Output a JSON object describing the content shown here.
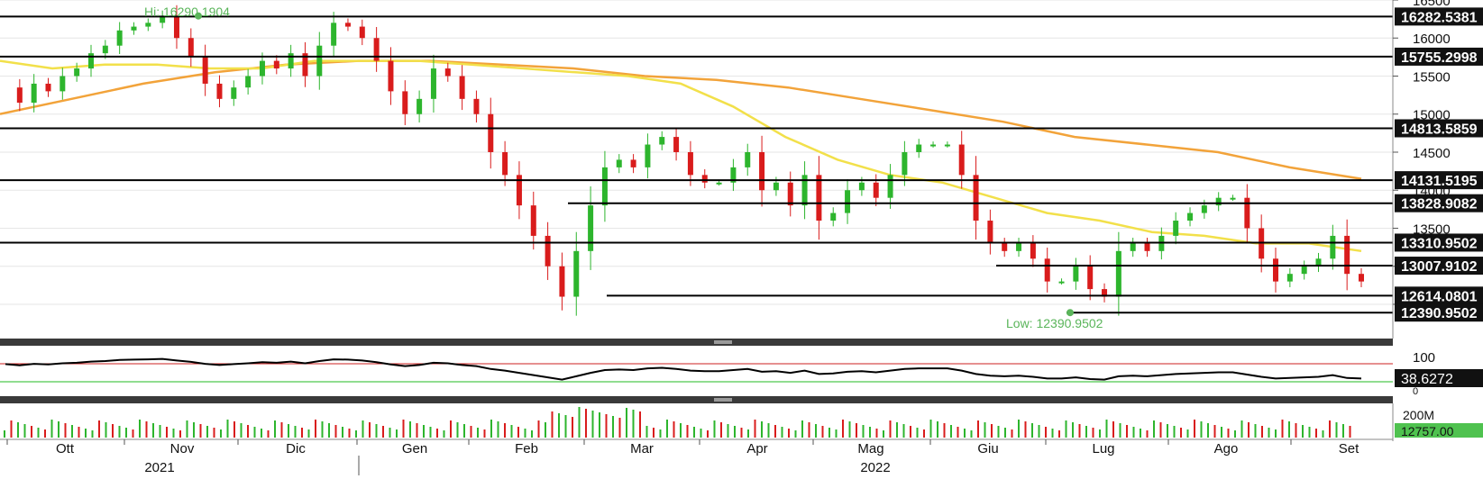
{
  "annotations": {
    "high": "Hi: 16290.1904",
    "low": "Low: 12390.9502"
  },
  "rsi_panel": {
    "ticks": [
      "100",
      "50",
      "0"
    ],
    "current_label": "38.6272"
  },
  "volume_panel": {
    "tick": "200M",
    "current_label": "12757.00"
  },
  "colors": {
    "up": "#2db52d",
    "down": "#d91c1c",
    "ma50": "#f2e04a",
    "ma200": "#f2a33a",
    "levels": "#000000",
    "rsi_upper": "#cc2222",
    "rsi_lower": "#22bb22",
    "annotation": "#5ab55a"
  },
  "chart_data": {
    "type": "candlestick",
    "y_ticks": [
      16500,
      16000,
      15500,
      15000,
      14500,
      14000,
      13500,
      13000,
      12500
    ],
    "ylim": [
      12050,
      16500
    ],
    "x_months": [
      "Ott",
      "Nov",
      "Dic",
      "Gen",
      "Feb",
      "Mar",
      "Apr",
      "Mag",
      "Giu",
      "Lug",
      "Ago",
      "Set"
    ],
    "x_years": [
      "2021",
      "2022"
    ],
    "high": 16290.1904,
    "low": 12390.9502,
    "level_lines": [
      {
        "label": "16282.5381",
        "value": 16282.5381
      },
      {
        "label": "15755.2998",
        "value": 15755.2998
      },
      {
        "label": "14813.5859",
        "value": 14813.5859
      },
      {
        "label": "14131.5195",
        "value": 14131.5195
      },
      {
        "label": "13828.9082",
        "value": 13828.9082
      },
      {
        "label": "13310.9502",
        "value": 13310.9502
      },
      {
        "label": "13007.9102",
        "value": 13007.9102
      },
      {
        "label": "12614.0801",
        "value": 12614.0801
      },
      {
        "label": "12390.9502",
        "value": 12390.9502
      }
    ],
    "close_path": [
      15350,
      15150,
      15400,
      15300,
      15500,
      15600,
      15800,
      15900,
      16100,
      16150,
      16200,
      16290,
      16000,
      15750,
      15400,
      15200,
      15350,
      15500,
      15700,
      15600,
      15800,
      15500,
      15900,
      16200,
      16150,
      16000,
      15700,
      15300,
      15000,
      15200,
      15600,
      15500,
      15200,
      15000,
      14500,
      14200,
      13800,
      13400,
      13000,
      12600,
      13200,
      13800,
      14300,
      14400,
      14300,
      14600,
      14700,
      14500,
      14200,
      14100,
      14100,
      14300,
      14500,
      14000,
      14100,
      13800,
      14200,
      13600,
      13700,
      14000,
      14100,
      13900,
      14200,
      14500,
      14600,
      14600,
      14600,
      14200,
      13600,
      13300,
      13200,
      13300,
      13100,
      12800,
      12800,
      13000,
      12700,
      12600,
      13200,
      13300,
      13200,
      13400,
      13600,
      13700,
      13800,
      13900,
      13900,
      13500,
      13100,
      12800,
      12900,
      13000,
      13100,
      13400,
      12900,
      12800
    ],
    "ma50": [
      15700,
      15600,
      15650,
      15650,
      15600,
      15600,
      15700,
      15700,
      15700,
      15650,
      15600,
      15550,
      15500,
      15400,
      15100,
      14700,
      14400,
      14200,
      14100,
      13900,
      13700,
      13600,
      13450,
      13400,
      13300,
      13300,
      13200
    ],
    "ma200": [
      15000,
      15200,
      15400,
      15550,
      15650,
      15700,
      15700,
      15650,
      15600,
      15500,
      15450,
      15350,
      15200,
      15050,
      14900,
      14700,
      14600,
      14500,
      14300,
      14150
    ],
    "rsi": {
      "ylim": [
        0,
        100
      ],
      "upper": 70,
      "lower": 30,
      "current": 38.6272
    },
    "volume": {
      "tick": "200M",
      "current": 12757.0
    }
  }
}
